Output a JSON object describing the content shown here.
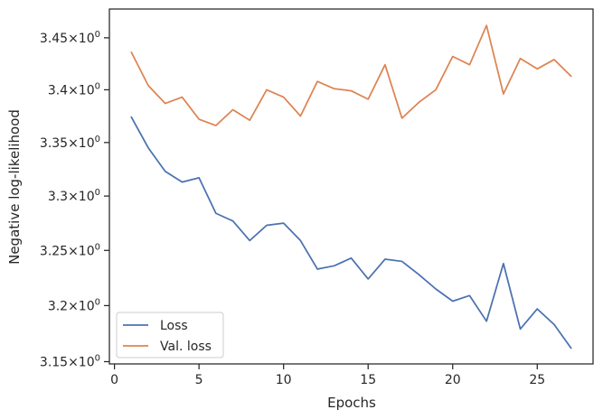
{
  "chart_data": {
    "type": "line",
    "xlabel": "Epochs",
    "ylabel": "Negative log-likelihood",
    "xlim": [
      -0.3,
      28.3
    ],
    "ylim": [
      3.148,
      3.478
    ],
    "log_y": true,
    "x_ticks": [
      0,
      5,
      10,
      15,
      20,
      25
    ],
    "x_tick_labels": [
      "0",
      "5",
      "10",
      "15",
      "20",
      "25"
    ],
    "y_ticks": [
      3.15,
      3.2,
      3.25,
      3.3,
      3.35,
      3.4,
      3.45
    ],
    "y_tick_labels": [
      {
        "mantissa": "3.15",
        "sep": "×",
        "base": "10",
        "exp": "0"
      },
      {
        "mantissa": "3.2",
        "sep": "×",
        "base": "10",
        "exp": "0"
      },
      {
        "mantissa": "3.25",
        "sep": "×",
        "base": "10",
        "exp": "0"
      },
      {
        "mantissa": "3.3",
        "sep": "×",
        "base": "10",
        "exp": "0"
      },
      {
        "mantissa": "3.35",
        "sep": "×",
        "base": "10",
        "exp": "0"
      },
      {
        "mantissa": "3.4",
        "sep": "×",
        "base": "10",
        "exp": "0"
      },
      {
        "mantissa": "3.45",
        "sep": "×",
        "base": "10",
        "exp": "0"
      }
    ],
    "grid": false,
    "legend_position": "lower-left",
    "x": [
      1,
      2,
      3,
      4,
      5,
      6,
      7,
      8,
      9,
      10,
      11,
      12,
      13,
      14,
      15,
      16,
      17,
      18,
      19,
      20,
      21,
      22,
      23,
      24,
      25,
      26,
      27
    ],
    "series": [
      {
        "name": "Loss",
        "color": "#4c72b0",
        "values": [
          3.374,
          3.345,
          3.323,
          3.313,
          3.317,
          3.284,
          3.277,
          3.259,
          3.273,
          3.275,
          3.259,
          3.233,
          3.236,
          3.243,
          3.224,
          3.242,
          3.24,
          3.228,
          3.215,
          3.204,
          3.209,
          3.186,
          3.238,
          3.179,
          3.197,
          3.183,
          3.162
        ]
      },
      {
        "name": "Val. loss",
        "color": "#dd8452",
        "values": [
          3.436,
          3.404,
          3.387,
          3.393,
          3.372,
          3.366,
          3.381,
          3.371,
          3.4,
          3.393,
          3.375,
          3.408,
          3.401,
          3.399,
          3.391,
          3.424,
          3.373,
          3.388,
          3.4,
          3.432,
          3.424,
          3.462,
          3.396,
          3.43,
          3.42,
          3.429,
          3.413
        ]
      }
    ]
  }
}
